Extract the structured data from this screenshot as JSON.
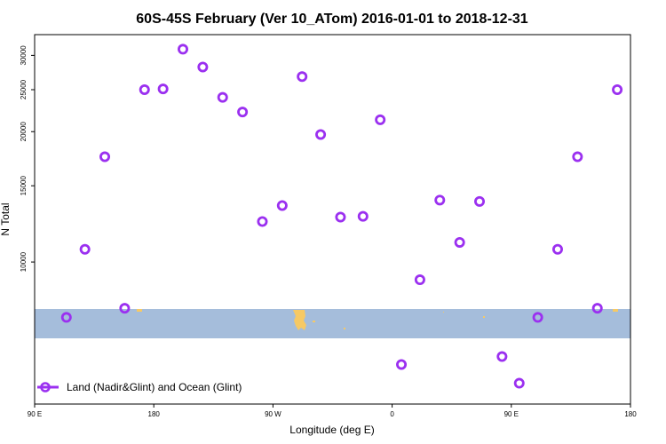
{
  "chart_data": {
    "type": "scatter",
    "title": "60S-45S February (Ver 10_ATom)   2016-01-01 to 2018-12-31",
    "xlabel": "Longitude (deg E)",
    "ylabel": "N Total",
    "y_scale": "log",
    "x_ticks": [
      {
        "value": 90,
        "label": "90 E"
      },
      {
        "value": 180,
        "label": "180"
      },
      {
        "value": 270,
        "label": "90 W"
      },
      {
        "value": 360,
        "label": "0"
      },
      {
        "value": 450,
        "label": "90 E"
      },
      {
        "value": 540,
        "label": "180"
      }
    ],
    "y_ticks": [
      {
        "value": 10000,
        "label": "10000"
      },
      {
        "value": 15000,
        "label": "15000"
      },
      {
        "value": 20000,
        "label": "20000"
      },
      {
        "value": 25000,
        "label": "25000"
      },
      {
        "value": 30000,
        "label": "30000"
      }
    ],
    "xlim": [
      90,
      540
    ],
    "ylim": [
      4700,
      33500
    ],
    "series": [
      {
        "name": "Land (Nadir&Glint) and Ocean (Glint)",
        "color": "#9b30f0",
        "points": [
          {
            "x": 114,
            "y": 7450
          },
          {
            "x": 128,
            "y": 10700
          },
          {
            "x": 143,
            "y": 17500
          },
          {
            "x": 158,
            "y": 7820
          },
          {
            "x": 173,
            "y": 25000
          },
          {
            "x": 187,
            "y": 25100
          },
          {
            "x": 202,
            "y": 31000
          },
          {
            "x": 217,
            "y": 28200
          },
          {
            "x": 232,
            "y": 24000
          },
          {
            "x": 247,
            "y": 22200
          },
          {
            "x": 262,
            "y": 12400
          },
          {
            "x": 277,
            "y": 13500
          },
          {
            "x": 292,
            "y": 26800
          },
          {
            "x": 306,
            "y": 19700
          },
          {
            "x": 321,
            "y": 12700
          },
          {
            "x": 338,
            "y": 12750
          },
          {
            "x": 351,
            "y": 21300
          },
          {
            "x": 367,
            "y": 5800
          },
          {
            "x": 381,
            "y": 9100
          },
          {
            "x": 396,
            "y": 13900
          },
          {
            "x": 411,
            "y": 11100
          },
          {
            "x": 426,
            "y": 13800
          },
          {
            "x": 443,
            "y": 6050
          },
          {
            "x": 456,
            "y": 5250
          },
          {
            "x": 470,
            "y": 7450
          },
          {
            "x": 485,
            "y": 10700
          },
          {
            "x": 500,
            "y": 17500
          },
          {
            "x": 515,
            "y": 7820
          },
          {
            "x": 530,
            "y": 25000
          }
        ]
      }
    ],
    "background_map_band": {
      "lat_top": -45,
      "lat_bottom": -60,
      "ocean_color": "#a5bddb",
      "land_color": "#f6c965"
    },
    "legend": {
      "position": "bottom-left"
    },
    "grid": false
  }
}
